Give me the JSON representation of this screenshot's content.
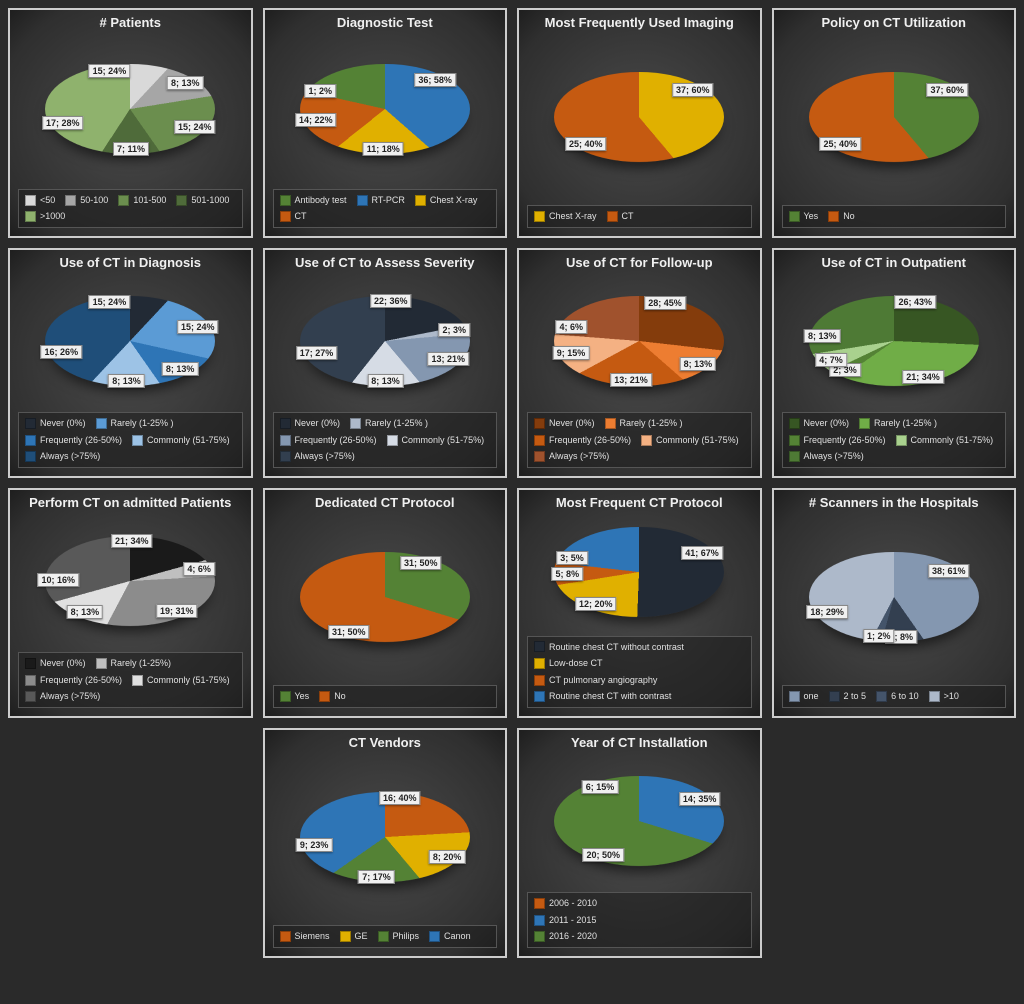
{
  "grid_cols": 4,
  "page_bg": "#2a2a2a",
  "panel_border": "#cccccc",
  "text_color": "#f0f0f0",
  "label_bg": "#f0f0f0",
  "legend_bg": "rgba(30,30,30,0.55)",
  "charts": [
    {
      "title": "# Patients",
      "type": "pie",
      "slices": [
        {
          "label": "15; 24%",
          "value": 24,
          "color": "#d9d9d9",
          "legend": "<50"
        },
        {
          "label": "8; 13%",
          "value": 13,
          "color": "#a6a6a6",
          "legend": "50-100"
        },
        {
          "label": "15; 24%",
          "value": 24,
          "color": "#6b8e4e",
          "legend": "101-500"
        },
        {
          "label": "7; 11%",
          "value": 11,
          "color": "#4f6b3a",
          "legend": "501-1000"
        },
        {
          "label": "17; 28%",
          "value": 28,
          "color": "#8fb26d",
          "legend": ">1000"
        }
      ]
    },
    {
      "title": "Diagnostic Test",
      "type": "pie",
      "slices": [
        {
          "label": "36; 58%",
          "value": 58,
          "color": "#2e75b6",
          "legend": "RT-PCR"
        },
        {
          "label": "11; 18%",
          "value": 18,
          "color": "#e0b000",
          "legend": "Chest X-ray"
        },
        {
          "label": "14; 22%",
          "value": 22,
          "color": "#c55a11",
          "legend": "CT"
        },
        {
          "label": "1; 2%",
          "value": 2,
          "color": "#548235",
          "legend": "Antibody test"
        }
      ],
      "legend_order": [
        "Antibody test",
        "RT-PCR",
        "Chest X-ray",
        "CT"
      ]
    },
    {
      "title": "Most Frequently Used Imaging",
      "type": "pie",
      "slices": [
        {
          "label": "37; 60%",
          "value": 60,
          "color": "#e0b000",
          "legend": "Chest X-ray"
        },
        {
          "label": "25; 40%",
          "value": 40,
          "color": "#c55a11",
          "legend": "CT"
        }
      ]
    },
    {
      "title": "Policy on CT Utilization",
      "type": "pie",
      "slices": [
        {
          "label": "37; 60%",
          "value": 60,
          "color": "#548235",
          "legend": "Yes"
        },
        {
          "label": "25; 40%",
          "value": 40,
          "color": "#c55a11",
          "legend": "No"
        }
      ]
    },
    {
      "title": "Use of CT in Diagnosis",
      "type": "pie",
      "slices": [
        {
          "label": "15; 24%",
          "value": 24,
          "color": "#222a35",
          "legend": "Never (0%)"
        },
        {
          "label": "15; 24%",
          "value": 24,
          "color": "#5b9bd5",
          "legend": "Rarely (1-25% )"
        },
        {
          "label": "8; 13%",
          "value": 13,
          "color": "#2e75b6",
          "legend": "Frequently (26-50%)"
        },
        {
          "label": "8; 13%",
          "value": 13,
          "color": "#9dc3e6",
          "legend": "Commonly (51-75%)"
        },
        {
          "label": "16; 26%",
          "value": 26,
          "color": "#1f4e79",
          "legend": "Always (>75%)"
        }
      ]
    },
    {
      "title": "Use of CT to Assess Severity",
      "type": "pie",
      "slices": [
        {
          "label": "22; 36%",
          "value": 36,
          "color": "#222a35",
          "legend": "Never (0%)"
        },
        {
          "label": "2; 3%",
          "value": 3,
          "color": "#adb9ca",
          "legend": "Rarely (1-25% )"
        },
        {
          "label": "13; 21%",
          "value": 21,
          "color": "#8497b0",
          "legend": "Frequently (26-50%)"
        },
        {
          "label": "8; 13%",
          "value": 13,
          "color": "#d6dce5",
          "legend": "Commonly (51-75%)"
        },
        {
          "label": "17; 27%",
          "value": 27,
          "color": "#323f4f",
          "legend": "Always (>75%)"
        }
      ]
    },
    {
      "title": "Use of CT for Follow-up",
      "type": "pie",
      "slices": [
        {
          "label": "28; 45%",
          "value": 45,
          "color": "#843c0c",
          "legend": "Never (0%)"
        },
        {
          "label": "8; 13%",
          "value": 13,
          "color": "#ed7d31",
          "legend": "Rarely (1-25% )"
        },
        {
          "label": "13; 21%",
          "value": 21,
          "color": "#c55a11",
          "legend": "Frequently (26-50%)"
        },
        {
          "label": "9; 15%",
          "value": 15,
          "color": "#f4b183",
          "legend": "Commonly (51-75%)"
        },
        {
          "label": "4; 6%",
          "value": 6,
          "color": "#a0522d",
          "legend": "Always (>75%)"
        }
      ]
    },
    {
      "title": "Use of CT in Outpatient",
      "type": "pie",
      "slices": [
        {
          "label": "26; 43%",
          "value": 43,
          "color": "#375623",
          "legend": "Never (0%)"
        },
        {
          "label": "21; 34%",
          "value": 34,
          "color": "#70ad47",
          "legend": "Rarely (1-25% )"
        },
        {
          "label": "2; 3%",
          "value": 3,
          "color": "#548235",
          "legend": "Frequently (26-50%)"
        },
        {
          "label": "4; 7%",
          "value": 7,
          "color": "#a9d18e",
          "legend": "Commonly (51-75%)"
        },
        {
          "label": "8; 13%",
          "value": 13,
          "color": "#4e7a35",
          "legend": "Always (>75%)"
        }
      ]
    },
    {
      "title": "Perform CT on admitted Patients",
      "type": "pie",
      "slices": [
        {
          "label": "21; 34%",
          "value": 34,
          "color": "#1a1a1a",
          "legend": "Never (0%)"
        },
        {
          "label": "4; 6%",
          "value": 6,
          "color": "#bfbfbf",
          "legend": "Rarely (1-25%)"
        },
        {
          "label": "19; 31%",
          "value": 31,
          "color": "#8c8c8c",
          "legend": "Frequently (26-50%)"
        },
        {
          "label": "8; 13%",
          "value": 13,
          "color": "#e0e0e0",
          "legend": "Commonly (51-75%)"
        },
        {
          "label": "10; 16%",
          "value": 16,
          "color": "#595959",
          "legend": "Always (>75%)"
        }
      ]
    },
    {
      "title": "Dedicated CT Protocol",
      "type": "pie",
      "slices": [
        {
          "label": "31; 50%",
          "value": 50,
          "color": "#548235",
          "legend": "Yes"
        },
        {
          "label": "31; 50%",
          "value": 50,
          "color": "#c55a11",
          "legend": "No"
        }
      ]
    },
    {
      "title": "Most Frequent CT Protocol",
      "type": "pie",
      "slices": [
        {
          "label": "41; 67%",
          "value": 67,
          "color": "#222a35",
          "legend": "Routine chest CT without contrast"
        },
        {
          "label": "12; 20%",
          "value": 20,
          "color": "#e0b000",
          "legend": "Low-dose CT"
        },
        {
          "label": "5; 8%",
          "value": 8,
          "color": "#c55a11",
          "legend": "CT pulmonary angiography"
        },
        {
          "label": "3; 5%",
          "value": 5,
          "color": "#2e75b6",
          "legend": "Routine chest CT with contrast"
        }
      ],
      "legend_cols": 1
    },
    {
      "title": "# Scanners in the Hospitals",
      "type": "pie",
      "slices": [
        {
          "label": "38; 61%",
          "value": 61,
          "color": "#8497b0",
          "legend": "one"
        },
        {
          "label": "5; 8%",
          "value": 8,
          "color": "#333f50",
          "legend": "2 to 5"
        },
        {
          "label": "1; 2%",
          "value": 2,
          "color": "#44546a",
          "legend": "6 to 10"
        },
        {
          "label": "18; 29%",
          "value": 29,
          "color": "#adb9ca",
          "legend": ">10"
        }
      ],
      "legend_order": [
        "one",
        "2 to 5",
        "6 to 10",
        ">10"
      ],
      "legend_cols": 4
    },
    {
      "title": "CT Vendors",
      "type": "pie",
      "slices": [
        {
          "label": "16; 40%",
          "value": 40,
          "color": "#c55a11",
          "legend": "Siemens"
        },
        {
          "label": "8; 20%",
          "value": 20,
          "color": "#e0b000",
          "legend": "GE"
        },
        {
          "label": "7; 17%",
          "value": 17,
          "color": "#548235",
          "legend": "Philips"
        },
        {
          "label": "9; 23%",
          "value": 23,
          "color": "#2e75b6",
          "legend": "Canon"
        }
      ],
      "row": 4,
      "col": 2
    },
    {
      "title": "Year of CT Installation",
      "type": "pie",
      "slices": [
        {
          "label": "6; 15%",
          "value": 15,
          "color": "#c55a11",
          "legend": "2006 - 2010"
        },
        {
          "label": "14; 35%",
          "value": 35,
          "color": "#2e75b6",
          "legend": "2011 - 2015"
        },
        {
          "label": "20; 50%",
          "value": 50,
          "color": "#548235",
          "legend": "2016 - 2020"
        }
      ],
      "row": 4,
      "col": 3,
      "legend_cols": 1
    }
  ]
}
